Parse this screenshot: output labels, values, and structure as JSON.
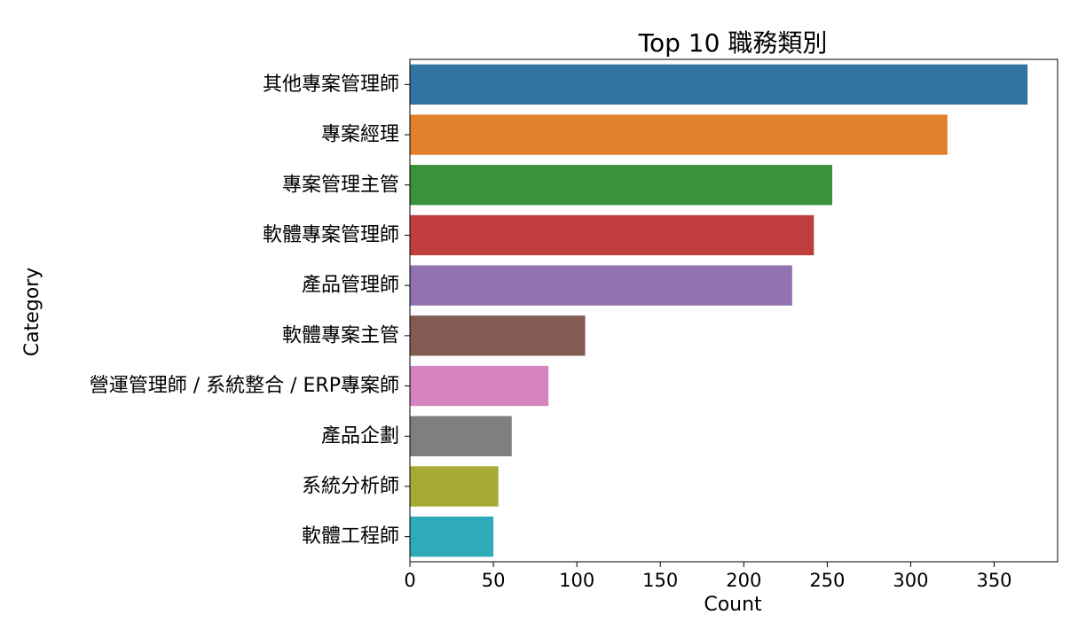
{
  "chart_data": {
    "type": "bar",
    "orientation": "horizontal",
    "title": "Top 10 職務類別",
    "xlabel": "Count",
    "ylabel": "Category",
    "xlim": [
      0,
      388
    ],
    "xticks": [
      0,
      50,
      100,
      150,
      200,
      250,
      300,
      350
    ],
    "grid": false,
    "categories": [
      "其他專案管理師",
      "專案經理",
      "專案管理主管",
      "軟體專案管理師",
      "產品管理師",
      "軟體專案主管",
      "營運管理師 / 系統整合 / ERP專案師",
      "產品企劃",
      "系統分析師",
      "軟體工程師"
    ],
    "values": [
      370,
      322,
      253,
      242,
      229,
      105,
      83,
      61,
      53,
      50
    ],
    "colors": [
      "#3274a1",
      "#e1812c",
      "#3a923a",
      "#c03d3e",
      "#9372b2",
      "#845b53",
      "#d684bd",
      "#7f7f7f",
      "#a9aa35",
      "#2eabb8"
    ]
  }
}
